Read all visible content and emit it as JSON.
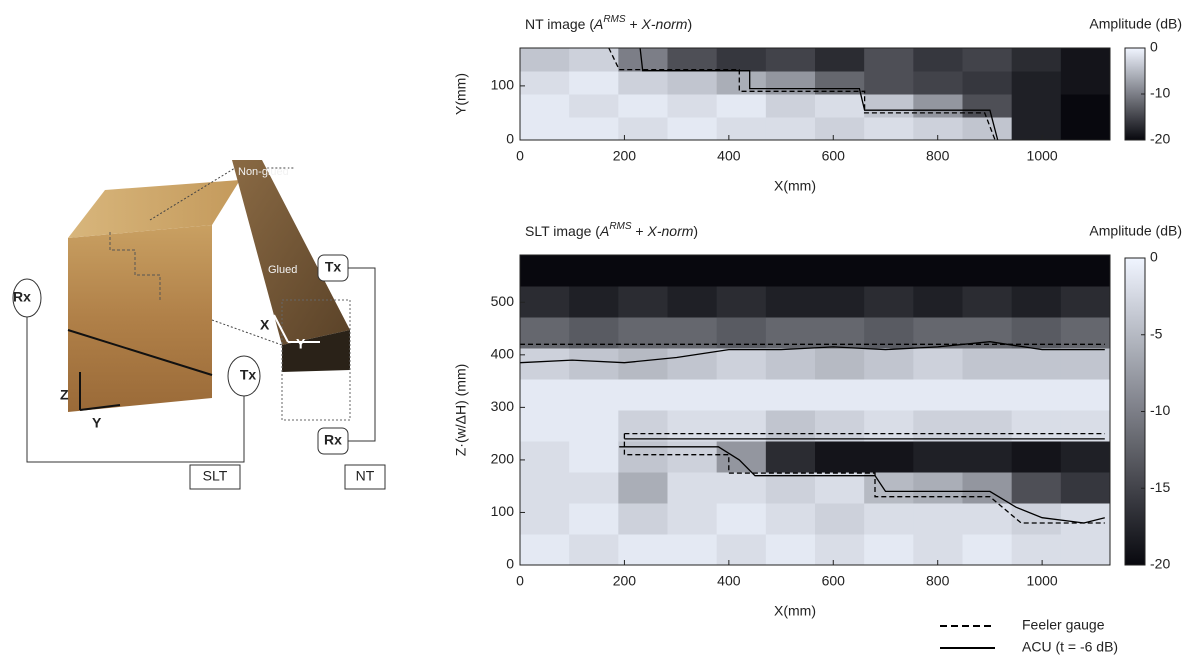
{
  "diagram": {
    "labels": [
      "Non-glued",
      "Glued",
      "Tx",
      "Rx",
      "X",
      "Y",
      "Z",
      "Y",
      "Tx",
      "Rx",
      "SLT",
      "NT"
    ]
  },
  "chart_data": [
    {
      "type": "heatmap",
      "title": [
        "NT image (",
        "A",
        "RMS",
        " + ",
        "X-norm",
        ")"
      ],
      "x_label": "X(mm)",
      "y_label": "Y(mm)",
      "xlim": [
        0,
        1130
      ],
      "xticks": [
        0,
        200,
        400,
        600,
        800,
        1000
      ],
      "ylim": [
        0,
        170
      ],
      "yticks": [
        0,
        100
      ],
      "clim": [
        -20,
        0
      ],
      "cticks": [
        0,
        -10,
        -20
      ],
      "clabel": "Amplitude (dB)",
      "z": [
        [
          -1,
          -1,
          -2,
          -1,
          -2,
          -2,
          -3,
          -2,
          -3,
          -4,
          -18,
          -20
        ],
        [
          -1,
          -2,
          -1,
          -2,
          -1,
          -3,
          -2,
          -4,
          -8,
          -14,
          -18,
          -20
        ],
        [
          -2,
          -1,
          -3,
          -4,
          -6,
          -8,
          -12,
          -14,
          -15,
          -16,
          -18,
          -19
        ],
        [
          -4,
          -3,
          -10,
          -14,
          -16,
          -15,
          -17,
          -14,
          -16,
          -15,
          -17,
          -19
        ]
      ],
      "series": [
        {
          "color": "#000000",
          "dash": true,
          "x": [
            170,
            190,
            420,
            420,
            660,
            660,
            890,
            910
          ],
          "values": [
            170,
            130,
            130,
            90,
            90,
            50,
            50,
            0
          ]
        },
        {
          "color": "#000000",
          "dash": false,
          "x": [
            230,
            235,
            440,
            440,
            650,
            660,
            900,
            915
          ],
          "values": [
            170,
            128,
            128,
            95,
            95,
            55,
            55,
            0
          ]
        }
      ]
    },
    {
      "type": "heatmap",
      "title": [
        "SLT image (",
        "A",
        "RMS",
        " + ",
        "X-norm",
        ")"
      ],
      "x_label": "X(mm)",
      "y_label": "Z·(w/ΔH)  (mm)",
      "xlim": [
        0,
        1130
      ],
      "xticks": [
        0,
        200,
        400,
        600,
        800,
        1000
      ],
      "ylim": [
        0,
        590
      ],
      "yticks": [
        0,
        100,
        200,
        300,
        400,
        500
      ],
      "clim": [
        -20,
        0
      ],
      "cticks": [
        0,
        -5,
        -10,
        -15,
        -20
      ],
      "clabel": "Amplitude (dB)",
      "legend": "bottom-right",
      "z": [
        [
          -1,
          -2,
          -1,
          -1,
          -2,
          -1,
          -2,
          -1,
          -2,
          -1,
          -2,
          -2
        ],
        [
          -2,
          -1,
          -3,
          -2,
          -1,
          -2,
          -3,
          -2,
          -2,
          -2,
          -3,
          -2
        ],
        [
          -2,
          -2,
          -6,
          -2,
          -2,
          -3,
          -2,
          -5,
          -6,
          -8,
          -14,
          -16
        ],
        [
          -2,
          -1,
          -4,
          -3,
          -8,
          -17,
          -19,
          -19,
          -18,
          -18,
          -19,
          -18
        ],
        [
          -1,
          -1,
          -3,
          -2,
          -2,
          -4,
          -3,
          -2,
          -3,
          -3,
          -2,
          -2
        ],
        [
          -1,
          -1,
          -1,
          -1,
          -1,
          -1,
          -1,
          -1,
          -1,
          -1,
          -1,
          -1
        ],
        [
          -3,
          -4,
          -5,
          -4,
          -3,
          -4,
          -5,
          -4,
          -3,
          -4,
          -4,
          -4
        ],
        [
          -12,
          -13,
          -12,
          -12,
          -13,
          -12,
          -12,
          -13,
          -12,
          -12,
          -13,
          -12
        ],
        [
          -17,
          -18,
          -17,
          -18,
          -17,
          -18,
          -18,
          -17,
          -18,
          -17,
          -18,
          -17
        ],
        [
          -20,
          -20,
          -20,
          -20,
          -20,
          -20,
          -20,
          -20,
          -20,
          -20,
          -20,
          -20
        ]
      ],
      "series": [
        {
          "name": "Feeler gauge",
          "color": "#000000",
          "dash": true,
          "x": [
            0,
            1120,
            null,
            200,
            1120,
            null,
            200,
            200,
            400,
            400,
            680,
            680,
            900,
            960,
            1120
          ],
          "values": [
            420,
            420,
            null,
            250,
            250,
            null,
            250,
            210,
            210,
            175,
            175,
            130,
            130,
            80,
            80
          ]
        },
        {
          "name": "ACU (t = -6 dB)",
          "color": "#000000",
          "dash": false,
          "x": [
            0,
            100,
            200,
            300,
            400,
            500,
            600,
            700,
            800,
            900,
            1000,
            1120,
            null,
            200,
            1120,
            null,
            190,
            380,
            420,
            450,
            680,
            700,
            900,
            950,
            1000,
            1080,
            1120
          ],
          "values": [
            385,
            390,
            385,
            395,
            410,
            410,
            415,
            410,
            415,
            425,
            410,
            410,
            null,
            240,
            240,
            null,
            225,
            225,
            200,
            170,
            170,
            140,
            140,
            110,
            90,
            80,
            90
          ]
        }
      ]
    }
  ]
}
